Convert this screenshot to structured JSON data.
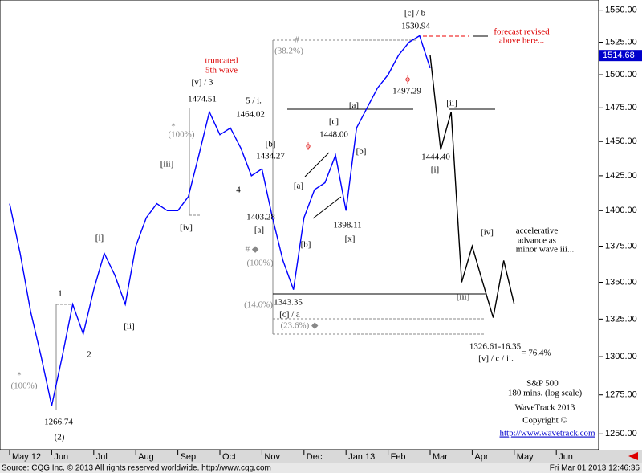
{
  "chart_data": {
    "type": "line",
    "log_scale": true,
    "categories": [
      "May 12",
      null,
      null,
      null,
      "Jun",
      null,
      null,
      null,
      "Jul",
      null,
      null,
      null,
      "Aug",
      null,
      null,
      null,
      "Sep",
      null,
      null,
      null,
      "Oct",
      null,
      null,
      null,
      "Nov",
      null,
      null,
      null,
      "Dec",
      null,
      null,
      null,
      "Jan 13",
      null,
      null,
      null,
      "Feb",
      null,
      null,
      null,
      "Mar",
      null,
      null,
      null,
      "Apr",
      null,
      null,
      null,
      "May",
      null,
      null,
      null,
      "Jun",
      null,
      null,
      null
    ],
    "series": [
      {
        "color": "#0000ff",
        "values": [
          1405,
          1370,
          1330,
          1300,
          1268,
          1300,
          1335,
          1315,
          1345,
          1370,
          1355,
          1335,
          1375,
          1395,
          1405,
          1400,
          1400,
          1410,
          1440,
          1472,
          1455,
          1460,
          1445,
          1425,
          1430,
          1395,
          1365,
          1345,
          1395,
          1415,
          1420,
          1440,
          1400,
          1460,
          1475,
          1490,
          1500,
          1515,
          1525,
          1530,
          1505,
          null,
          null,
          null,
          null,
          null,
          null,
          null,
          null,
          null,
          null,
          null,
          null,
          null,
          null,
          null
        ]
      },
      {
        "color": "#000000",
        "values": [
          null,
          null,
          null,
          null,
          null,
          null,
          null,
          null,
          null,
          null,
          null,
          null,
          null,
          null,
          null,
          null,
          null,
          null,
          null,
          null,
          null,
          null,
          null,
          null,
          null,
          null,
          null,
          null,
          null,
          null,
          null,
          null,
          null,
          null,
          null,
          null,
          null,
          null,
          null,
          null,
          1515,
          1444,
          1472,
          1350,
          1375,
          1350,
          1326,
          1365,
          1335,
          null,
          null,
          null,
          null,
          null,
          null,
          null
        ]
      }
    ],
    "ylim": [
      1240,
      1558
    ],
    "yticks": [
      {
        "value": 1250,
        "label": "1250.00"
      },
      {
        "value": 1275,
        "label": "1275.00"
      },
      {
        "value": 1300,
        "label": "1300.00"
      },
      {
        "value": 1325,
        "label": "1325.00"
      },
      {
        "value": 1350,
        "label": "1350.00"
      },
      {
        "value": 1375,
        "label": "1375.00"
      },
      {
        "value": 1400,
        "label": "1400.00"
      },
      {
        "value": 1425,
        "label": "1425.00"
      },
      {
        "value": 1450,
        "label": "1450.00"
      },
      {
        "value": 1475,
        "label": "1475.00"
      },
      {
        "value": 1500,
        "label": "1500.00"
      },
      {
        "value": 1525,
        "label": "1525.00"
      },
      {
        "value": 1550,
        "label": "1550.00"
      }
    ],
    "last_price": 1514.68,
    "annotations": [
      "[c] / b",
      "1530.94",
      "forecast revised",
      "above here...",
      "#",
      "(38.2%)",
      "truncated",
      "5th wave",
      "[v] / 3",
      "1474.51",
      "5 / i.",
      "1464.02",
      "1497.29",
      "[ii]",
      "[a]",
      "[c]",
      "1448.00",
      "ϕ",
      "ϕ",
      "[b]",
      "1434.27",
      "[b]",
      "1444.40",
      "[i]",
      "(100%)",
      "*",
      "[iii]",
      "4",
      "[a]",
      "1403.28",
      "[a]",
      "1398.11",
      "[iv]",
      "[x]",
      "[b]",
      "[i]",
      "# ◆",
      "(100%)",
      "[iv]",
      "accelerative",
      "advance as",
      "minor wave iii...",
      "1",
      "[iii]",
      "1343.35",
      "(14.6%)",
      "[ii]",
      "[c] / a",
      "(23.6%) ◆",
      "1326.61-16.35",
      "= 76.4%",
      "[v] / c / ii.",
      "2",
      "*",
      "(100%)",
      "S&P 500",
      "180 mins. (log scale)",
      "WaveTrack 2013",
      "Copyright ©",
      "http://www.wavetrack.com",
      "1266.74",
      "(2)"
    ],
    "source": "Source: CQG Inc. © 2013 All rights reserved worldwide. http://www.cqg.com",
    "timestamp": "Fri Mar 01 2013 12:46:36"
  }
}
